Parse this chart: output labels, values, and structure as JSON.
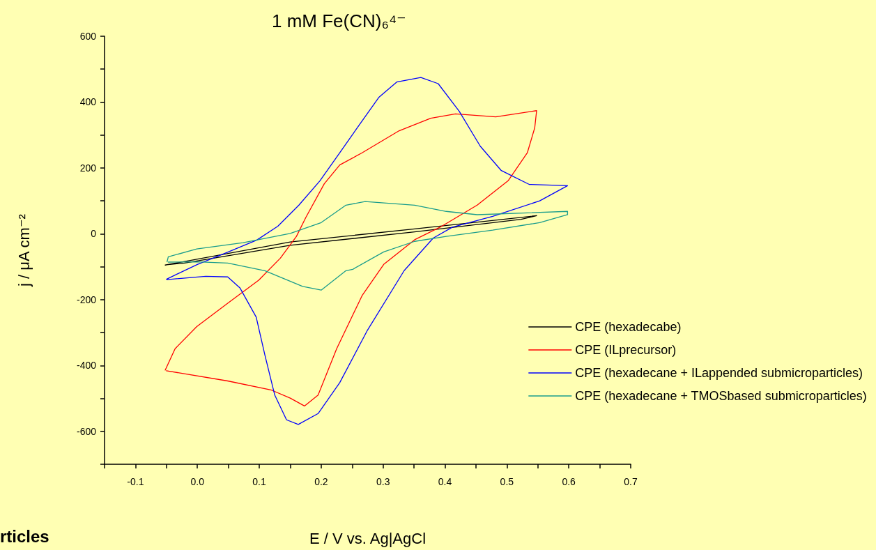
{
  "chart_data": {
    "type": "line",
    "title": "1 mM Fe(CN)₆⁴⁻",
    "xlabel": "E / V vs. Ag|AgCl",
    "ylabel": "j / μA cm⁻²",
    "annotations": [
      "rticles"
    ],
    "xlim": [
      -0.15,
      0.7
    ],
    "ylim": [
      -700,
      600
    ],
    "xticks": [
      {
        "value": -0.15,
        "label": null
      },
      {
        "value": -0.1,
        "label": "-0.1"
      },
      {
        "value": -0.05,
        "label": null
      },
      {
        "value": 0,
        "label": "0.0"
      },
      {
        "value": 0.05,
        "label": null
      },
      {
        "value": 0.1,
        "label": "0.1"
      },
      {
        "value": 0.15,
        "label": null
      },
      {
        "value": 0.2,
        "label": "0.2"
      },
      {
        "value": 0.25,
        "label": null
      },
      {
        "value": 0.3,
        "label": "0.3"
      },
      {
        "value": 0.35,
        "label": null
      },
      {
        "value": 0.4,
        "label": "0.4"
      },
      {
        "value": 0.45,
        "label": null
      },
      {
        "value": 0.5,
        "label": "0.5"
      },
      {
        "value": 0.55,
        "label": null
      },
      {
        "value": 0.6,
        "label": "0.6"
      },
      {
        "value": 0.65,
        "label": null
      },
      {
        "value": 0.7,
        "label": "0.7"
      }
    ],
    "yticks": [
      {
        "value": -700,
        "label": null
      },
      -600,
      {
        "value": -500,
        "label": null
      },
      -400,
      {
        "value": -300,
        "label": null
      },
      -200,
      {
        "value": -100,
        "label": null
      },
      0,
      {
        "value": 100,
        "label": null
      },
      200,
      {
        "value": 300,
        "label": null
      },
      400,
      {
        "value": 500,
        "label": null
      },
      600
    ],
    "grid": false,
    "legend": "bottom right",
    "marker": "none",
    "line_style": "solid",
    "series": [
      {
        "name": "CPE (hexadecabe)",
        "color": "#000000",
        "x": [
          -0.052,
          0.15,
          0.351,
          0.548,
          0.523,
          0.351,
          0.15,
          -0.021,
          -0.05
        ],
        "values": [
          -95,
          -25,
          15,
          55,
          44,
          6,
          -35,
          -89,
          -94
        ]
      },
      {
        "name": "CPE (ILprecursor)",
        "color": "#ff0000",
        "x": [
          -0.052,
          -0.036,
          -0.001,
          0.049,
          0.099,
          0.134,
          0.16,
          0.175,
          0.205,
          0.23,
          0.266,
          0.326,
          0.377,
          0.417,
          0.482,
          0.548,
          0.545,
          0.533,
          0.502,
          0.452,
          0.392,
          0.351,
          0.301,
          0.266,
          0.225,
          0.195,
          0.173,
          0.15,
          0.12,
          0.049,
          -0.05
        ],
        "values": [
          -414,
          -349,
          -282,
          -211,
          -141,
          -74,
          -8,
          49,
          152,
          209,
          246,
          313,
          351,
          364,
          355,
          374,
          322,
          246,
          161,
          87,
          20,
          -18,
          -93,
          -188,
          -349,
          -490,
          -523,
          -499,
          -475,
          -447,
          -416
        ]
      },
      {
        "name": "CPE (hexadecane + ILappended submicroparticles)",
        "color": "#0000ff",
        "x": [
          -0.05,
          0,
          0.05,
          0.096,
          0.13,
          0.164,
          0.198,
          0.231,
          0.265,
          0.293,
          0.322,
          0.361,
          0.389,
          0.423,
          0.457,
          0.491,
          0.536,
          0.598,
          0.553,
          0.477,
          0.412,
          0.381,
          0.334,
          0.275,
          0.23,
          0.195,
          0.163,
          0.144,
          0.125,
          0.109,
          0.095,
          0.069,
          0.049,
          0.0135,
          -0.049
        ],
        "values": [
          -138,
          -93,
          -55,
          -19,
          23,
          87,
          161,
          249,
          340,
          414,
          461,
          475,
          456,
          372,
          266,
          192,
          150,
          146,
          100,
          53,
          20,
          -13,
          -112,
          -292,
          -452,
          -546,
          -579,
          -565,
          -490,
          -368,
          -253,
          -165,
          -131,
          -129,
          -139
        ]
      },
      {
        "name": "CPE (hexadecane + TMOSbased submicroparticles)",
        "color": "#199c8c",
        "x": [
          -0.049,
          -0.047,
          -0.001,
          0.074,
          0.15,
          0.2,
          0.24,
          0.271,
          0.351,
          0.402,
          0.452,
          0.598,
          0.598,
          0.553,
          0.477,
          0.402,
          0.351,
          0.301,
          0.251,
          0.24,
          0.2,
          0.17,
          0.109,
          0.049,
          -0.001,
          -0.047
        ],
        "values": [
          -85,
          -70,
          -46,
          -27,
          1,
          34,
          87,
          98,
          87,
          68,
          58,
          68,
          58,
          34,
          11,
          -8,
          -23,
          -55,
          -108,
          -112,
          -171,
          -160,
          -112,
          -89,
          -85,
          -86
        ]
      }
    ]
  }
}
